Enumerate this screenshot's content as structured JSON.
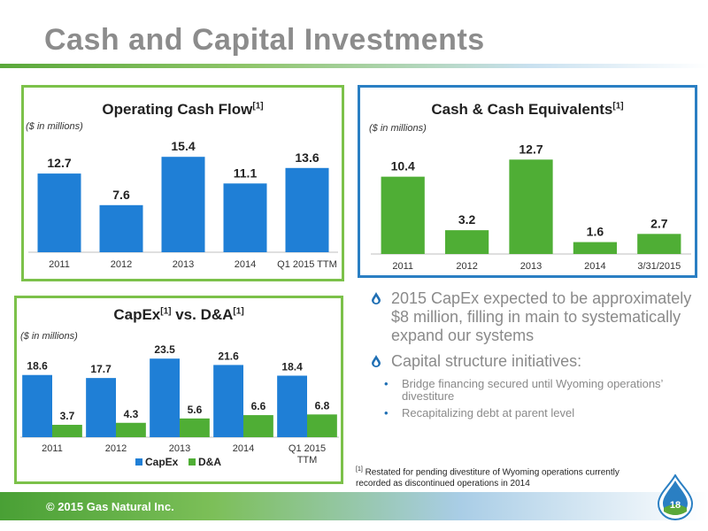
{
  "page": {
    "title": "Cash and Capital Investments",
    "footer": "© 2015 Gas Natural Inc.",
    "page_number": "18"
  },
  "bullets": [
    {
      "text": "2015 CapEx expected to be approximately $8 million, filling in main to systematically expand our systems",
      "subs": []
    },
    {
      "text": "Capital structure initiatives:",
      "subs": [
        "Bridge financing secured until Wyoming operations’ divestiture",
        "Recapitalizing debt at parent level"
      ]
    }
  ],
  "footnote": {
    "marker": "[1]",
    "text": " Restated for pending divestiture of Wyoming operations currently recorded as discontinued operations in 2014"
  },
  "colors": {
    "blue_bar": "#1f7fd6",
    "green_bar": "#4fae35",
    "green_light": "#7cc14a",
    "panel_green": "#7cc14a",
    "panel_blue": "#2a7fc3"
  },
  "chart_data": [
    {
      "type": "bar",
      "title": "Operating Cash Flow",
      "title_sup": "[1]",
      "subtitle": "($ in millions)",
      "categories": [
        "2011",
        "2012",
        "2013",
        "2014",
        "Q1 2015 TTM"
      ],
      "values": [
        12.7,
        7.6,
        15.4,
        11.1,
        13.6
      ],
      "data_labels": [
        "12.7",
        "7.6",
        "15.4",
        "11.1",
        "13.6"
      ],
      "ylim": [
        0,
        18
      ],
      "color": "#1f7fd6",
      "grid": false
    },
    {
      "type": "bar",
      "title": "Cash & Cash Equivalents",
      "title_sup": "[1]",
      "subtitle": "($ in millions)",
      "categories": [
        "2011",
        "2012",
        "2013",
        "2014",
        "3/31/2015"
      ],
      "values": [
        10.4,
        3.2,
        12.7,
        1.6,
        2.7
      ],
      "data_labels": [
        "10.4",
        "3.2",
        "12.7",
        "1.6",
        "2.7"
      ],
      "ylim": [
        0,
        15
      ],
      "color": "#4fae35",
      "grid": false
    },
    {
      "type": "bar",
      "title_a": "CapEx",
      "title_b": " vs. D&A",
      "title_sup": "[1]",
      "subtitle": "($ in millions)",
      "categories": [
        "2011",
        "2012",
        "2013",
        "2014",
        "Q1 2015 TTM"
      ],
      "series": [
        {
          "name": "CapEx",
          "values": [
            18.6,
            17.7,
            23.5,
            21.6,
            18.4
          ],
          "labels": [
            "18.6",
            "17.7",
            "23.5",
            "21.6",
            "18.4"
          ],
          "color": "#1f7fd6"
        },
        {
          "name": "D&A",
          "values": [
            3.7,
            4.3,
            5.6,
            6.6,
            6.8
          ],
          "labels": [
            "3.7",
            "4.3",
            "5.6",
            "6.6",
            "6.8"
          ],
          "color": "#4fae35"
        }
      ],
      "ylim": [
        0,
        27
      ],
      "legend": "bottom",
      "grid": false
    }
  ]
}
